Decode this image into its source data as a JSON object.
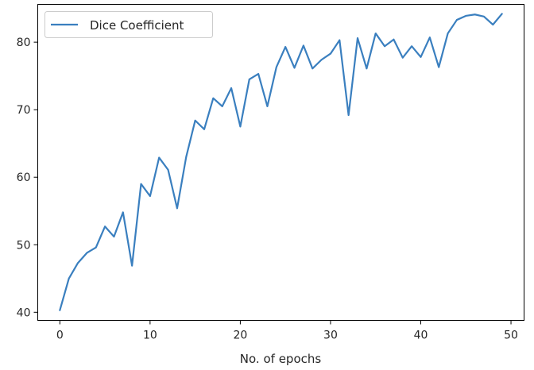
{
  "chart_data": {
    "type": "line",
    "xlabel": "No. of epochs",
    "ylabel": "",
    "title": "",
    "xlim": [
      -2.45,
      51.45
    ],
    "ylim": [
      38.8,
      85.6
    ],
    "xticks": [
      0,
      10,
      20,
      30,
      40,
      50
    ],
    "yticks": [
      40,
      50,
      60,
      70,
      80
    ],
    "grid": false,
    "legend_position": "top-left",
    "series_color": "#3a7fbf",
    "series": [
      {
        "name": "Dice Coefficient",
        "x": [
          0,
          1,
          2,
          3,
          4,
          5,
          6,
          7,
          8,
          9,
          10,
          11,
          12,
          13,
          14,
          15,
          16,
          17,
          18,
          19,
          20,
          21,
          22,
          23,
          24,
          25,
          26,
          27,
          28,
          29,
          30,
          31,
          32,
          33,
          34,
          35,
          36,
          37,
          38,
          39,
          40,
          41,
          42,
          43,
          44,
          45,
          46,
          47,
          48,
          49
        ],
        "values": [
          40.3,
          45.0,
          47.3,
          48.8,
          49.6,
          52.7,
          51.2,
          54.8,
          46.9,
          59.0,
          57.2,
          62.9,
          61.1,
          55.4,
          63.0,
          68.4,
          67.1,
          71.7,
          70.5,
          73.2,
          67.5,
          74.5,
          75.3,
          70.5,
          76.3,
          79.3,
          76.2,
          79.5,
          76.1,
          77.4,
          78.3,
          80.3,
          69.2,
          80.6,
          76.1,
          81.3,
          79.4,
          80.4,
          77.7,
          79.4,
          77.8,
          80.7,
          76.3,
          81.3,
          83.3,
          83.9,
          84.1,
          83.8,
          82.6,
          84.2
        ]
      }
    ]
  }
}
